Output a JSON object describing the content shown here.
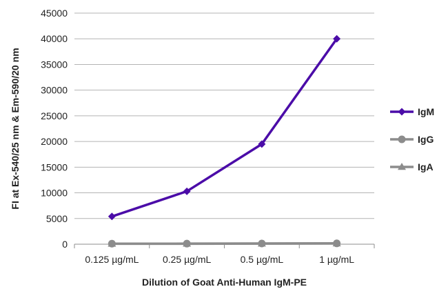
{
  "chart_data": {
    "type": "line",
    "xlabel": "Dilution of Goat Anti-Human IgM-PE",
    "ylabel": "FI at Ex-540/25 nm & Em-590/20 nm",
    "categories": [
      "0.125 µg/mL",
      "0.25 µg/mL",
      "0.5 µg/mL",
      "1 µg/mL"
    ],
    "ylim": [
      0,
      45000
    ],
    "yticks": [
      0,
      5000,
      10000,
      15000,
      20000,
      25000,
      30000,
      35000,
      40000,
      45000
    ],
    "grid": true,
    "legend": "right",
    "series": [
      {
        "name": "IgM",
        "values": [
          5400,
          10300,
          19500,
          40000
        ],
        "color": "#4b0ca8",
        "marker": "diamond"
      },
      {
        "name": "IgG",
        "values": [
          100,
          110,
          130,
          160
        ],
        "color": "#8c8c8c",
        "marker": "circle"
      },
      {
        "name": "IgA",
        "values": [
          80,
          90,
          110,
          140
        ],
        "color": "#8c8c8c",
        "marker": "triangle"
      }
    ]
  }
}
